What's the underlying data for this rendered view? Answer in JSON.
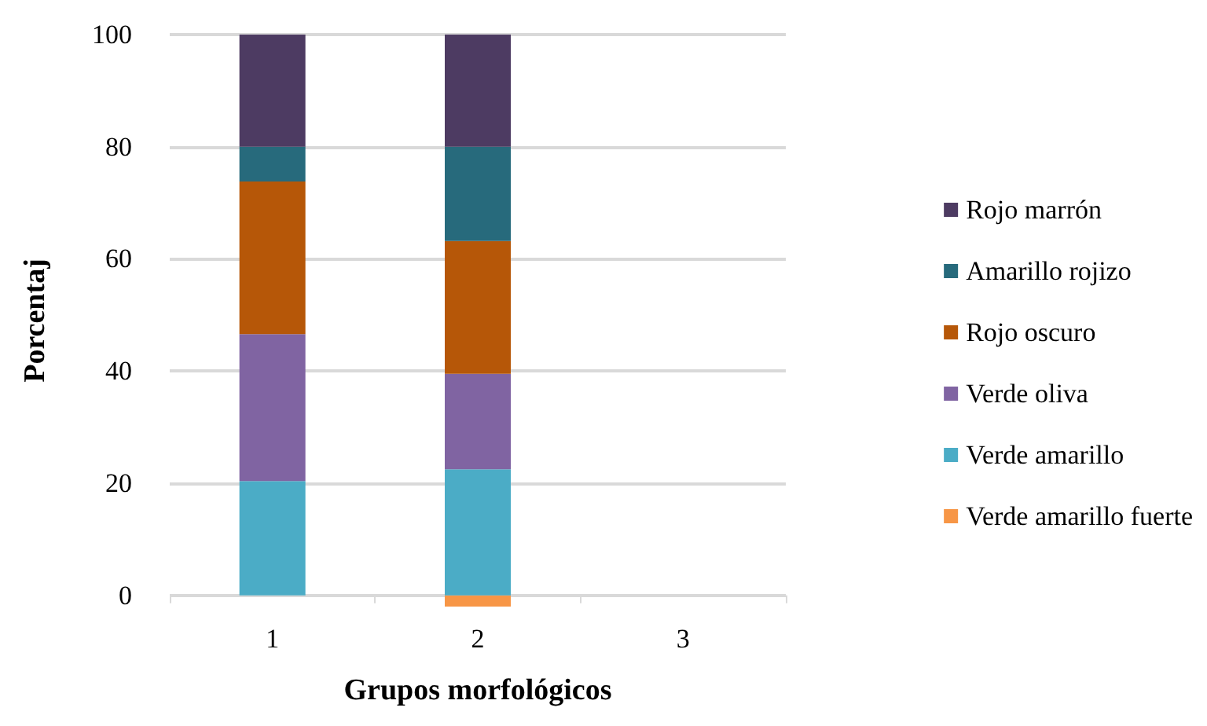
{
  "chart_data": {
    "type": "bar",
    "stacked": true,
    "xlabel": "Grupos morfológicos",
    "ylabel": "Porcentaj",
    "categories": [
      "1",
      "2",
      "3"
    ],
    "series": [
      {
        "name": "Verde amarillo fuerte",
        "color": "#f79646",
        "values": [
          0,
          -2,
          0
        ]
      },
      {
        "name": "Verde amarillo",
        "color": "#4bacc6",
        "values": [
          20.4,
          22.5,
          0
        ]
      },
      {
        "name": "Verde oliva",
        "color": "#8064a2",
        "values": [
          26.2,
          17,
          0
        ]
      },
      {
        "name": "Rojo oscuro",
        "color": "#b65708",
        "values": [
          27.2,
          23.7,
          0
        ]
      },
      {
        "name": "Amarillo rojizo",
        "color": "#276a7c",
        "values": [
          6.2,
          16.8,
          0
        ]
      },
      {
        "name": "Rojo marrón",
        "color": "#4d3b62",
        "values": [
          20,
          20,
          0
        ]
      }
    ],
    "ylim": [
      -2,
      100
    ],
    "yticks": [
      0,
      20,
      40,
      60,
      80,
      100
    ],
    "grid": "y",
    "legend": "right"
  }
}
